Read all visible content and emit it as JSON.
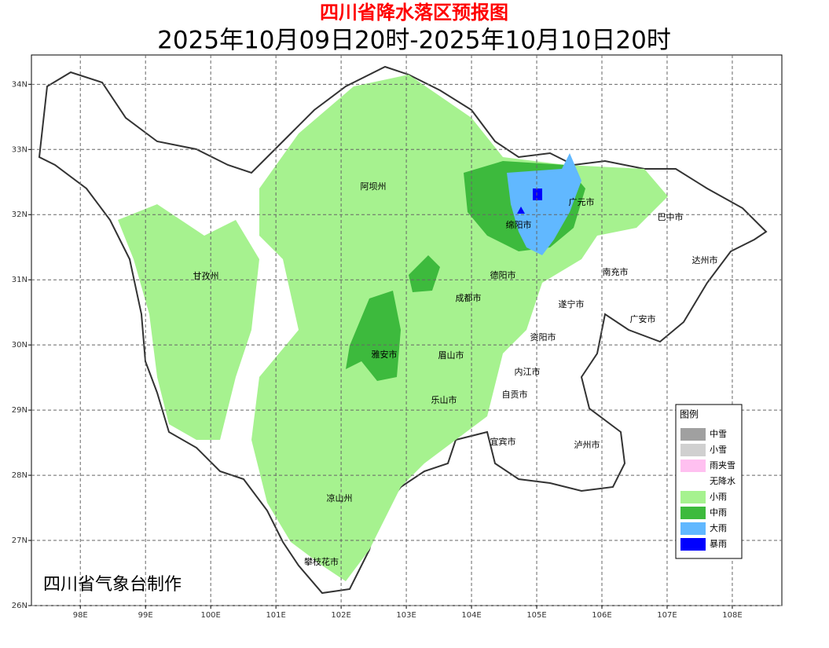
{
  "title": "四川省降水落区预报图",
  "subtitle": "2025年10月09日20时-2025年10月10日20时",
  "map": {
    "lon_range": [
      97.25,
      108.76
    ],
    "lat_range": [
      26,
      34.45
    ],
    "lon_ticks": [
      {
        "value": 98,
        "label": "98E"
      },
      {
        "value": 99,
        "label": "99E"
      },
      {
        "value": 100,
        "label": "100E"
      },
      {
        "value": 101,
        "label": "101E"
      },
      {
        "value": 102,
        "label": "102E"
      },
      {
        "value": 103,
        "label": "103E"
      },
      {
        "value": 104,
        "label": "104E"
      },
      {
        "value": 105,
        "label": "105E"
      },
      {
        "value": 106,
        "label": "106E"
      },
      {
        "value": 107,
        "label": "107E"
      },
      {
        "value": 108,
        "label": "108E"
      }
    ],
    "lat_ticks": [
      {
        "value": 26,
        "label": "26N"
      },
      {
        "value": 27,
        "label": "27N"
      },
      {
        "value": 28,
        "label": "28N"
      },
      {
        "value": 29,
        "label": "29N"
      },
      {
        "value": 30,
        "label": "30N"
      },
      {
        "value": 31,
        "label": "31N"
      },
      {
        "value": 32,
        "label": "32N"
      },
      {
        "value": 33,
        "label": "33N"
      },
      {
        "value": 34,
        "label": "34N"
      }
    ],
    "grid": true
  },
  "places": [
    "阿坝州",
    "甘孜州",
    "广元市",
    "巴中市",
    "绵阳市",
    "达州市",
    "南充市",
    "德阳市",
    "成都市",
    "遂宁市",
    "广安市",
    "资阳市",
    "雅安市",
    "眉山市",
    "内江市",
    "自贡市",
    "乐山市",
    "宜宾市",
    "泸州市",
    "凉山州",
    "攀枝花市"
  ],
  "legend": {
    "title": "图例",
    "items": [
      {
        "label": "中雪",
        "color": "#a0a0a0"
      },
      {
        "label": "小雪",
        "color": "#d0d0d0"
      },
      {
        "label": "雨夹雪",
        "color": "#ffc0f0"
      },
      {
        "label": "无降水",
        "color": "#ffffff"
      },
      {
        "label": "小雨",
        "color": "#a6f28f"
      },
      {
        "label": "中雨",
        "color": "#3dba3d"
      },
      {
        "label": "大雨",
        "color": "#61b8ff"
      },
      {
        "label": "暴雨",
        "color": "#0000fe"
      }
    ]
  },
  "credit": "四川省气象台制作"
}
